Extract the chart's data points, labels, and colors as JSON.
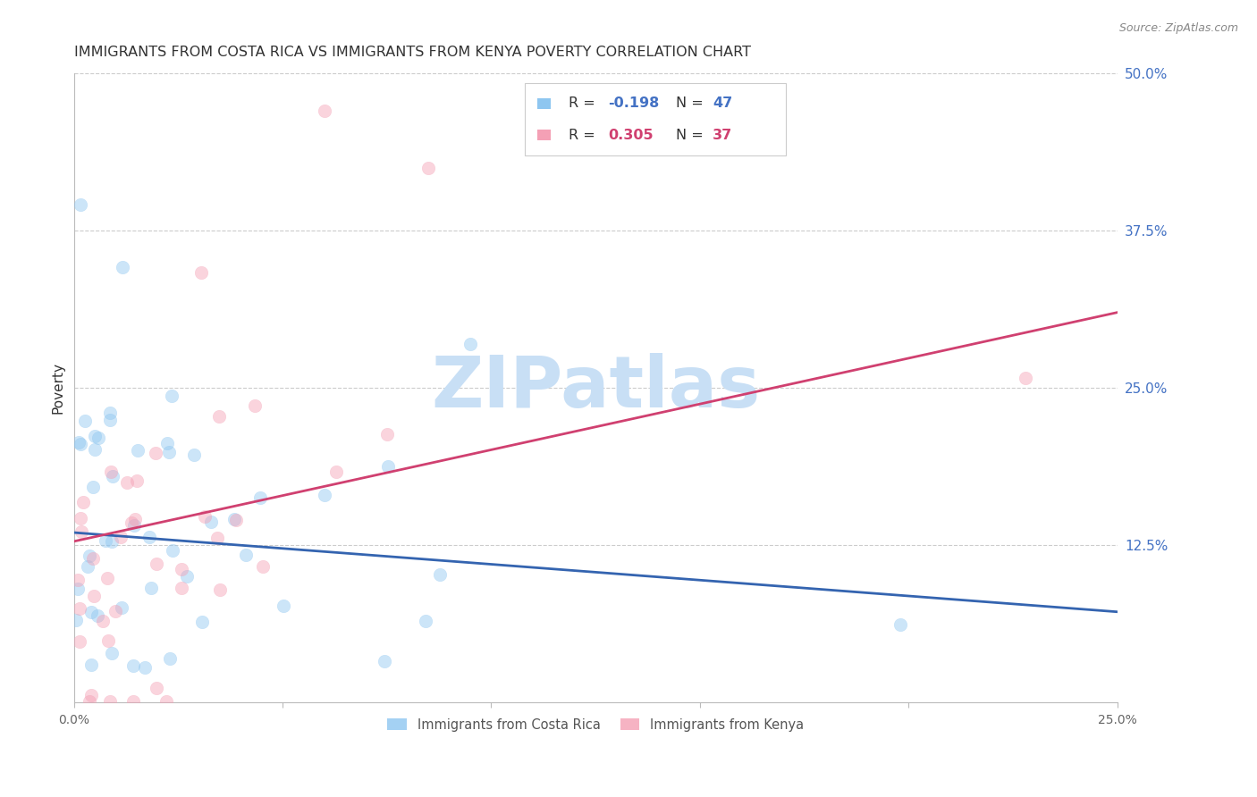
{
  "title": "IMMIGRANTS FROM COSTA RICA VS IMMIGRANTS FROM KENYA POVERTY CORRELATION CHART",
  "source": "Source: ZipAtlas.com",
  "ylabel": "Poverty",
  "xlim": [
    0.0,
    0.25
  ],
  "ylim": [
    0.0,
    0.5
  ],
  "xtick_vals": [
    0.0,
    0.05,
    0.1,
    0.15,
    0.2,
    0.25
  ],
  "xticklabels": [
    "0.0%",
    "",
    "",
    "",
    "",
    "25.0%"
  ],
  "ytick_vals": [
    0.0,
    0.125,
    0.25,
    0.375,
    0.5
  ],
  "yticklabels_right": [
    "",
    "12.5%",
    "25.0%",
    "37.5%",
    "50.0%"
  ],
  "color_cr": "#8EC6F0",
  "color_ke": "#F4A0B5",
  "color_cr_line": "#3464B0",
  "color_ke_line": "#D04070",
  "color_right_axis": "#4472C4",
  "marker_size": 110,
  "marker_alpha": 0.45,
  "line_width": 2.0,
  "watermark": "ZIPatlas",
  "watermark_color": "#c8dff5",
  "background_color": "#ffffff",
  "grid_color": "#cccccc",
  "R_cr": -0.198,
  "N_cr": 47,
  "R_ke": 0.305,
  "N_ke": 37,
  "cr_line_x": [
    0.0,
    0.25
  ],
  "cr_line_y": [
    0.135,
    0.072
  ],
  "ke_line_x": [
    0.0,
    0.25
  ],
  "ke_line_y": [
    0.128,
    0.31
  ]
}
